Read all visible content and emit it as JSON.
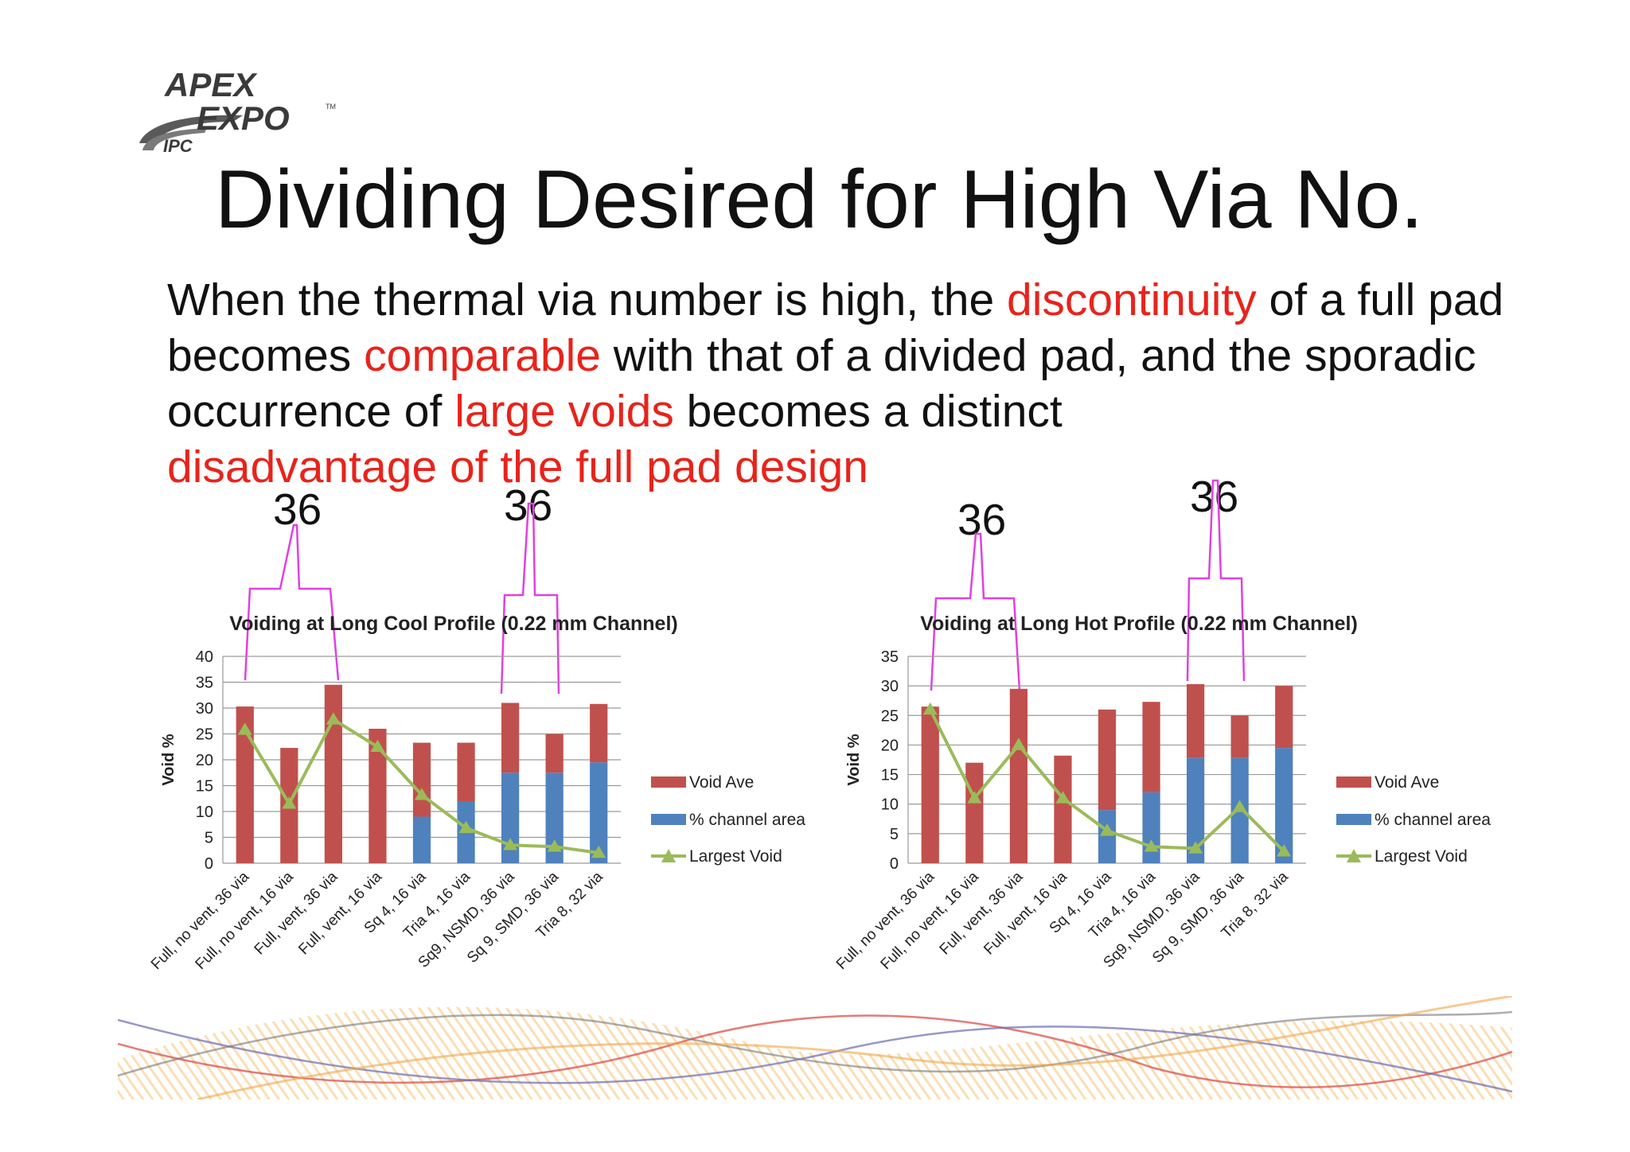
{
  "slide": {
    "title": "Dividing Desired for High Via No.",
    "logo": {
      "line1": "APEX",
      "line2": "EXPO",
      "tm": "TM",
      "org": "IPC"
    },
    "body_segments": [
      {
        "text": "When the thermal via number is high, the ",
        "highlight": false
      },
      {
        "text": "discontinuity",
        "highlight": true
      },
      {
        "text": " of a full pad becomes ",
        "highlight": false
      },
      {
        "text": "comparable",
        "highlight": true
      },
      {
        "text": " with that of a divided pad, and the sporadic occurrence of ",
        "highlight": false
      },
      {
        "text": "large voids",
        "highlight": true
      },
      {
        "text": " becomes a distinct ",
        "highlight": false
      },
      {
        "text": "disadvantage of the full pad design",
        "highlight": true
      }
    ],
    "annotations": [
      "36",
      "36",
      "36",
      "36"
    ],
    "colors": {
      "highlight": "#e8231b",
      "void_ave": "#c0504d",
      "channel": "#4f81bd",
      "largest_void": "#9bbb59",
      "bracket": "#e040e0"
    }
  },
  "chart_data": [
    {
      "type": "bar",
      "stacked": true,
      "title": "Voiding at Long Cool Profile (0.22 mm Channel)",
      "ylabel": "Void %",
      "xlabel": "",
      "ylim": [
        0,
        40
      ],
      "yticks": [
        0,
        5,
        10,
        15,
        20,
        25,
        30,
        35,
        40
      ],
      "grid": true,
      "legend_position": "right",
      "categories": [
        "Full, no vent, 36 via",
        "Full, no vent, 16 via",
        "Full, vent, 36 via",
        "Full, vent, 16 via",
        "Sq 4, 16 via",
        "Tria 4, 16 via",
        "Sq9, NSMD, 36 via",
        "Sq 9, SMD, 36 via",
        "Tria 8, 32 via"
      ],
      "bar_series": [
        {
          "name": "% channel area",
          "values": [
            0,
            0,
            0,
            0,
            9,
            12,
            17.5,
            17.5,
            19.5
          ]
        },
        {
          "name": "Void Ave",
          "values": [
            30.3,
            22.3,
            34.5,
            26.0,
            14.3,
            11.3,
            13.5,
            7.5,
            11.3
          ]
        }
      ],
      "line_series": [
        {
          "name": "Largest Void",
          "values": [
            25.8,
            11.5,
            27.8,
            22.5,
            13.2,
            6.8,
            3.5,
            3.2,
            2.0
          ]
        }
      ],
      "legend": [
        "Void Ave",
        "% channel area",
        "Largest Void"
      ],
      "brackets": [
        [
          0,
          2
        ],
        [
          6,
          7
        ]
      ]
    },
    {
      "type": "bar",
      "stacked": true,
      "title": "Voiding at Long Hot Profile (0.22 mm Channel)",
      "ylabel": "Void %",
      "xlabel": "",
      "ylim": [
        0,
        35
      ],
      "yticks": [
        0,
        5,
        10,
        15,
        20,
        25,
        30,
        35
      ],
      "grid": true,
      "legend_position": "right",
      "categories": [
        "Full, no vent, 36 via",
        "Full, no vent, 16 via",
        "Full, vent, 36 via",
        "Full, vent, 16 via",
        "Sq 4, 16 via",
        "Tria 4, 16 via",
        "Sq9, NSMD, 36 via",
        "Sq 9, SMD, 36 via",
        "Tria 8, 32 via"
      ],
      "bar_series": [
        {
          "name": "% channel area",
          "values": [
            0,
            0,
            0,
            0,
            9,
            12,
            17.8,
            17.8,
            19.5
          ]
        },
        {
          "name": "Void Ave",
          "values": [
            26.5,
            17.0,
            29.5,
            18.2,
            17.0,
            15.3,
            12.5,
            7.2,
            10.5
          ]
        }
      ],
      "line_series": [
        {
          "name": "Largest Void",
          "values": [
            26.0,
            11.0,
            20.0,
            11.0,
            5.5,
            2.8,
            2.5,
            9.5,
            2.0
          ]
        }
      ],
      "legend": [
        "Void Ave",
        "% channel area",
        "Largest Void"
      ],
      "brackets": [
        [
          0,
          2
        ],
        [
          6,
          7
        ]
      ]
    }
  ]
}
